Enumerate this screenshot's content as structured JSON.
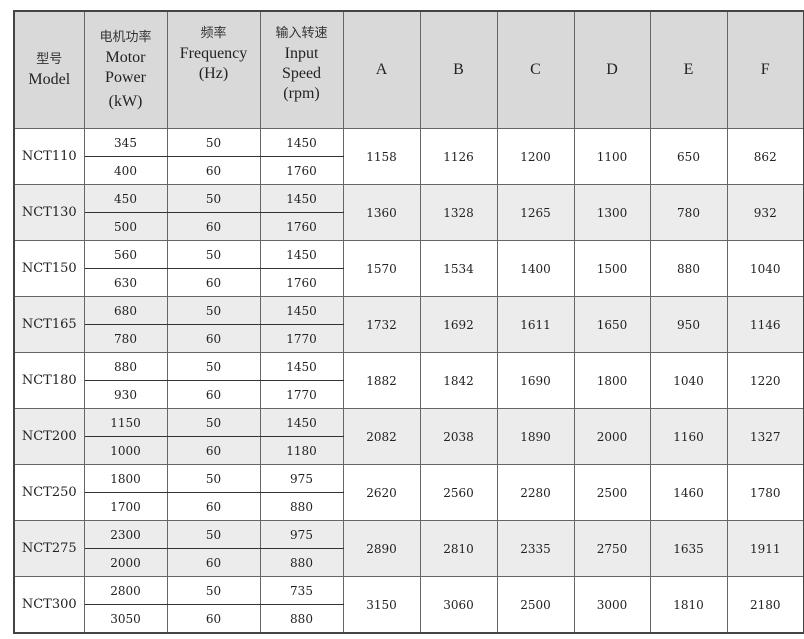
{
  "header": {
    "model": {
      "zh": "型号",
      "en": "Model"
    },
    "power": {
      "zh": "电机功率",
      "en1": "Motor",
      "en2": "Power",
      "unit": "(kW)"
    },
    "frequency": {
      "zh": "频率",
      "en": "Frequency",
      "unit": "(Hz)"
    },
    "speed": {
      "zh": "输入转速",
      "en1": "Input",
      "en2": "Speed",
      "unit": "(rpm)"
    },
    "dims": [
      "A",
      "B",
      "C",
      "D",
      "E",
      "F"
    ]
  },
  "rows": [
    {
      "model": "NCT110",
      "sub": [
        {
          "power": "345",
          "freq": "50",
          "speed": "1450"
        },
        {
          "power": "400",
          "freq": "60",
          "speed": "1760"
        }
      ],
      "dims": [
        "1158",
        "1126",
        "1200",
        "1100",
        "650",
        "862"
      ]
    },
    {
      "model": "NCT130",
      "sub": [
        {
          "power": "450",
          "freq": "50",
          "speed": "1450"
        },
        {
          "power": "500",
          "freq": "60",
          "speed": "1760"
        }
      ],
      "dims": [
        "1360",
        "1328",
        "1265",
        "1300",
        "780",
        "932"
      ]
    },
    {
      "model": "NCT150",
      "sub": [
        {
          "power": "560",
          "freq": "50",
          "speed": "1450"
        },
        {
          "power": "630",
          "freq": "60",
          "speed": "1760"
        }
      ],
      "dims": [
        "1570",
        "1534",
        "1400",
        "1500",
        "880",
        "1040"
      ]
    },
    {
      "model": "NCT165",
      "sub": [
        {
          "power": "680",
          "freq": "50",
          "speed": "1450"
        },
        {
          "power": "780",
          "freq": "60",
          "speed": "1770"
        }
      ],
      "dims": [
        "1732",
        "1692",
        "1611",
        "1650",
        "950",
        "1146"
      ]
    },
    {
      "model": "NCT180",
      "sub": [
        {
          "power": "880",
          "freq": "50",
          "speed": "1450"
        },
        {
          "power": "930",
          "freq": "60",
          "speed": "1770"
        }
      ],
      "dims": [
        "1882",
        "1842",
        "1690",
        "1800",
        "1040",
        "1220"
      ]
    },
    {
      "model": "NCT200",
      "sub": [
        {
          "power": "1150",
          "freq": "50",
          "speed": "1450"
        },
        {
          "power": "1000",
          "freq": "60",
          "speed": "1180"
        }
      ],
      "dims": [
        "2082",
        "2038",
        "1890",
        "2000",
        "1160",
        "1327"
      ]
    },
    {
      "model": "NCT250",
      "sub": [
        {
          "power": "1800",
          "freq": "50",
          "speed": "975"
        },
        {
          "power": "1700",
          "freq": "60",
          "speed": "880"
        }
      ],
      "dims": [
        "2620",
        "2560",
        "2280",
        "2500",
        "1460",
        "1780"
      ]
    },
    {
      "model": "NCT275",
      "sub": [
        {
          "power": "2300",
          "freq": "50",
          "speed": "975"
        },
        {
          "power": "2000",
          "freq": "60",
          "speed": "880"
        }
      ],
      "dims": [
        "2890",
        "2810",
        "2335",
        "2750",
        "1635",
        "1911"
      ]
    },
    {
      "model": "NCT300",
      "sub": [
        {
          "power": "2800",
          "freq": "50",
          "speed": "735"
        },
        {
          "power": "3050",
          "freq": "60",
          "speed": "880"
        }
      ],
      "dims": [
        "3150",
        "3060",
        "2500",
        "3000",
        "1810",
        "2180"
      ]
    }
  ],
  "colors": {
    "header_bg": "#d9d9d9",
    "alt_row_bg": "#ececec",
    "border": "#666666"
  }
}
